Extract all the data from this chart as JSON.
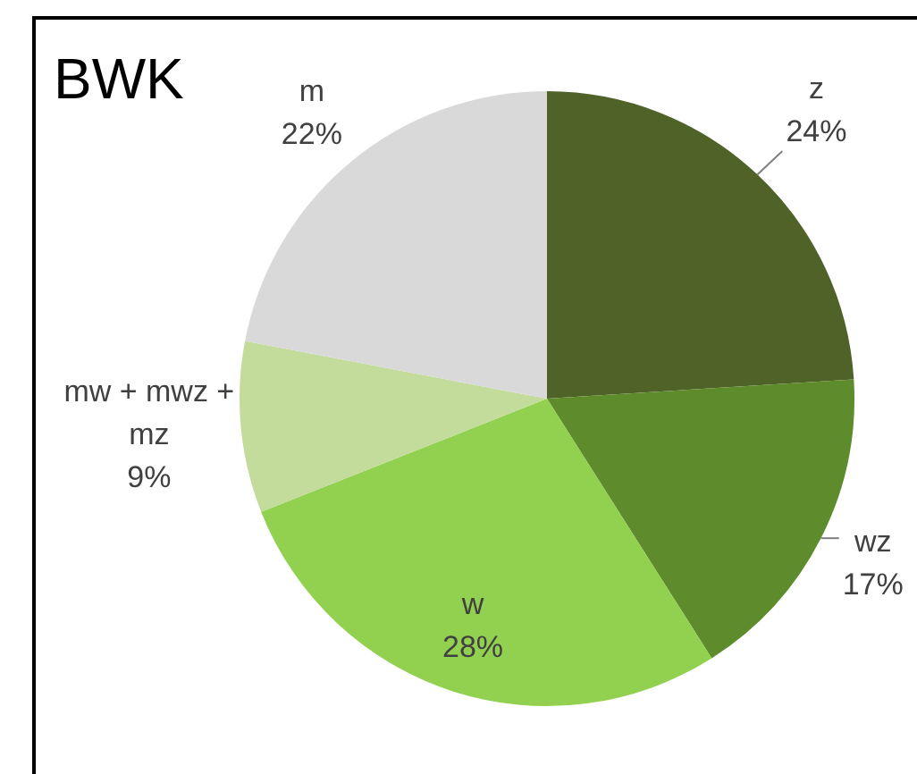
{
  "chart_data": {
    "type": "pie",
    "title": "BWK",
    "categories": [
      "z",
      "wz",
      "w",
      "mw + mwz + mz",
      "m"
    ],
    "values": [
      24,
      17,
      28,
      9,
      22
    ],
    "colors": [
      "#4f6228",
      "#5e8c2c",
      "#92d050",
      "#c3dc9c",
      "#d9d9d9"
    ],
    "value_labels": [
      "24%",
      "17%",
      "28%",
      "9%",
      "22%"
    ]
  }
}
